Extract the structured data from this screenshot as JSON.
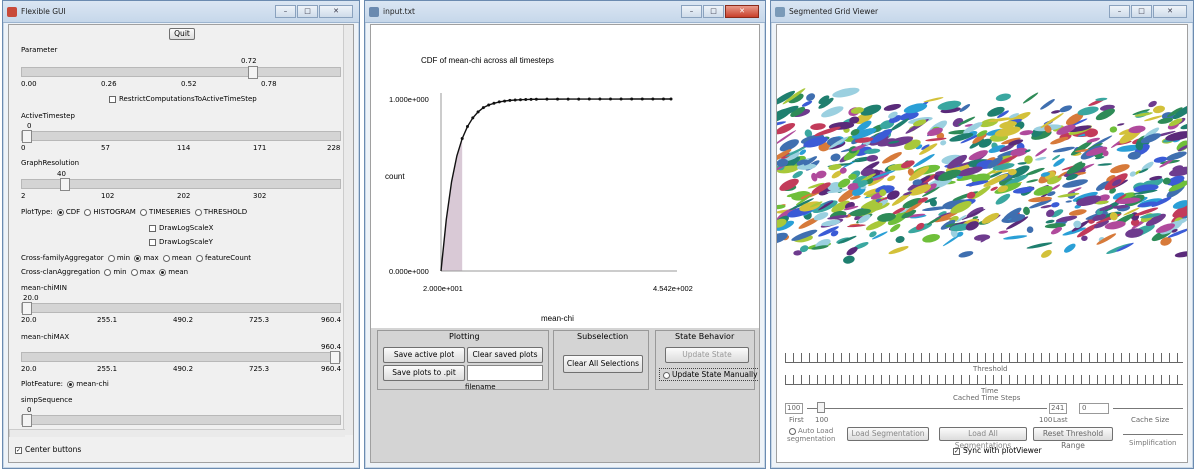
{
  "win1": {
    "title": "Flexible GUI",
    "quit": "Quit",
    "param": {
      "label": "Parameter",
      "value": "0.72",
      "ticks": [
        "0.00",
        "0.26",
        "0.52",
        "0.78"
      ]
    },
    "restrict": "RestrictComputationsToActiveTimeStep",
    "active_ts": {
      "label": "ActiveTimestep",
      "value": "0",
      "ticks": [
        "0",
        "57",
        "114",
        "171",
        "228"
      ]
    },
    "graph_res": {
      "label": "GraphResolution",
      "value": "40",
      "ticks": [
        "2",
        "102",
        "202",
        "302"
      ]
    },
    "plot_type": {
      "label": "PlotType:",
      "options": [
        "CDF",
        "HISTOGRAM",
        "TIMESERIES",
        "THRESHOLD"
      ]
    },
    "draw_log_x": "DrawLogScaleX",
    "draw_log_y": "DrawLogScaleY",
    "cross_family": {
      "label": "Cross-familyAggregator",
      "options": [
        "min",
        "max",
        "mean",
        "featureCount"
      ]
    },
    "cross_clan": {
      "label": "Cross-clanAggregation",
      "options": [
        "min",
        "max",
        "mean"
      ]
    },
    "mean_min": {
      "label": "mean-chiMIN",
      "value": "20.0",
      "ticks": [
        "20.0",
        "255.1",
        "490.2",
        "725.3",
        "960.4"
      ]
    },
    "mean_max": {
      "label": "mean-chiMAX",
      "value": "960.4",
      "ticks": [
        "20.0",
        "255.1",
        "490.2",
        "725.3",
        "960.4"
      ]
    },
    "plot_feature": {
      "label": "PlotFeature:",
      "option": "mean-chi"
    },
    "simp": {
      "label": "simpSequence",
      "value": "0"
    },
    "center_buttons": "Center buttons"
  },
  "win2": {
    "title": "input.txt",
    "chart_data": {
      "type": "line",
      "title": "CDF of mean-chi across all timesteps",
      "xlabel": "mean-chi",
      "ylabel": "count",
      "x_ticks": [
        "2.000e+001",
        "4.542e+002"
      ],
      "y_ticks": [
        "0.000e+000",
        "1.000e+000"
      ],
      "xlim": [
        20,
        454.2
      ],
      "ylim": [
        0,
        1
      ],
      "series": [
        {
          "x": [
            20,
            30,
            40,
            50,
            60,
            70,
            80,
            90,
            100,
            110,
            120,
            130,
            140,
            150,
            160,
            170,
            180,
            190,
            200,
            220,
            240,
            260,
            280,
            300,
            320,
            340,
            360,
            380,
            400,
            420,
            440,
            454.2
          ],
          "y": [
            0,
            0.3,
            0.52,
            0.67,
            0.77,
            0.84,
            0.89,
            0.925,
            0.95,
            0.965,
            0.975,
            0.983,
            0.988,
            0.992,
            0.994,
            0.996,
            0.997,
            0.998,
            0.9985,
            0.999,
            0.9993,
            0.9995,
            0.9996,
            0.9997,
            0.9998,
            0.9999,
            0.9999,
            1,
            1,
            1,
            1,
            1
          ]
        }
      ],
      "shaded_xlim": [
        20,
        60
      ]
    },
    "plotting": {
      "label": "Plotting",
      "save_active": "Save active plot",
      "clear_saved": "Clear saved plots",
      "save_to": "Save plots to .pit",
      "filename": "filename"
    },
    "subselection": {
      "label": "Subselection",
      "clear_all": "Clear All Selections"
    },
    "state": {
      "label": "State Behavior",
      "update": "Update State",
      "manual": "Update State Manually"
    }
  },
  "win3": {
    "title": "Segmented Grid Viewer",
    "threshold": "Threshold",
    "time": "Time",
    "cached": "Cached Time Steps",
    "first_val": "100",
    "first": "First",
    "mid": "100",
    "last_val": "241",
    "last": "Last",
    "cache_val": "0",
    "cache_size": "Cache Size",
    "last_tick": "100",
    "auto_load": "Auto Load segmentation",
    "load_seg": "Load Segmentation",
    "load_all": "Load All Segmentations",
    "reset": "Reset Threshold Range",
    "simplification": "Simplification",
    "sync": "Sync with plotViewer",
    "colors": [
      "#1f7f6f",
      "#3aa7a0",
      "#6e3b8e",
      "#b04a9c",
      "#3b5bd6",
      "#d3c13a",
      "#6fbf3a",
      "#2e8b57",
      "#9bd0e0",
      "#d77a3a",
      "#5a2a7a",
      "#3f6fb0",
      "#a8c83a",
      "#c23b5a",
      "#2a9fd6"
    ]
  }
}
